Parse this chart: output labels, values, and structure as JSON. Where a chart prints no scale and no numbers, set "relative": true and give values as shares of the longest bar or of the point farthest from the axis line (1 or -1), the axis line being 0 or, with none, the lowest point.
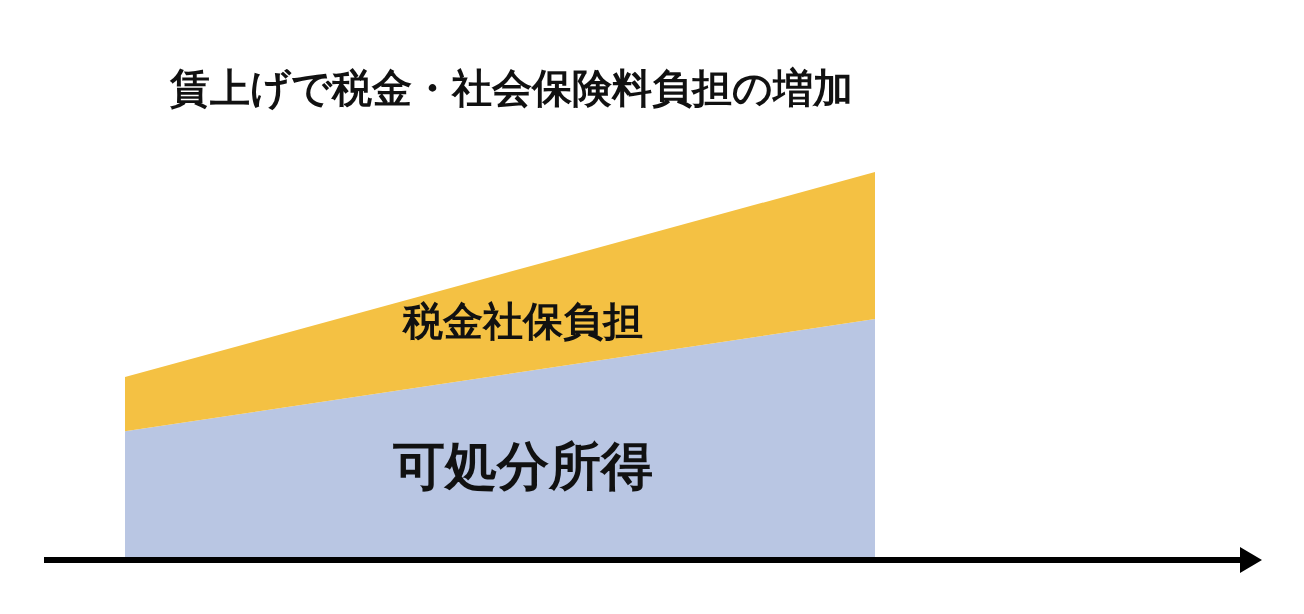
{
  "chart_data": {
    "type": "area",
    "title": "賃上げで税金・社会保険料負担の増加",
    "categories": [
      null,
      null
    ],
    "relative": true,
    "stacked": true,
    "series": [
      {
        "name": "可処分所得",
        "color": "#b9c6e3",
        "values": [
          0.33,
          0.62
        ]
      },
      {
        "name": "税金社保負担",
        "color": "#f4c143",
        "values": [
          0.14,
          0.38
        ]
      }
    ]
  }
}
